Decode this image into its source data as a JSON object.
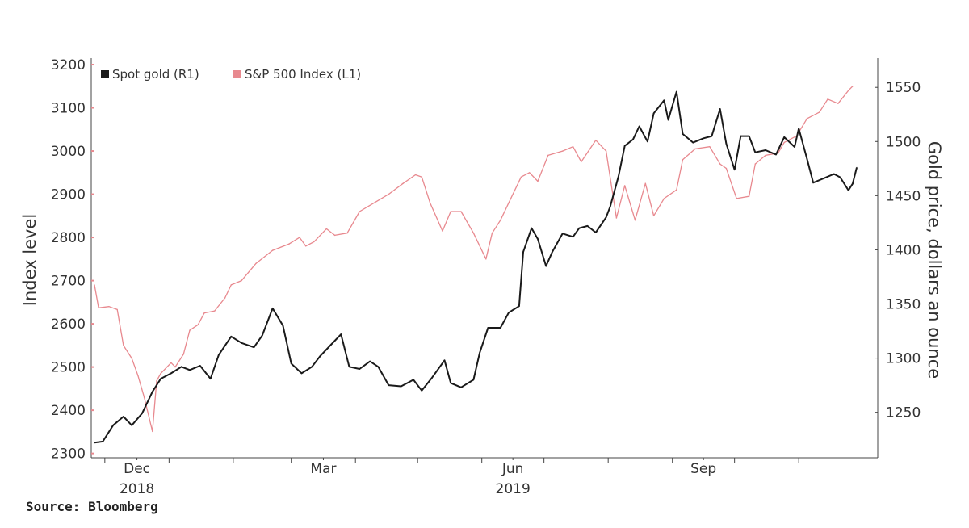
{
  "chart_data": {
    "type": "line",
    "source": "Source: Bloomberg",
    "legend": [
      {
        "label": "Spot gold (R1)",
        "color": "#1a1a1a"
      },
      {
        "label": "S&P 500 Index (L1)",
        "color": "#e8898f"
      }
    ],
    "x_ticks": [
      {
        "label": "Dec",
        "year_label": "2018",
        "date": "2018-12"
      },
      {
        "label": "Mar",
        "year_label": "",
        "date": "2019-03"
      },
      {
        "label": "Jun",
        "year_label": "2019",
        "date": "2019-06"
      },
      {
        "label": "Sep",
        "year_label": "",
        "date": "2019-09"
      }
    ],
    "left_axis": {
      "label": "Index level",
      "ticks": [
        "3200",
        "3100",
        "3000",
        "2900",
        "2800",
        "2700",
        "2600",
        "2500",
        "2400",
        "2300"
      ],
      "ylim": [
        2290,
        3215
      ]
    },
    "right_axis": {
      "label": "Gold price, dollars an ounce",
      "ticks": [
        "1550",
        "1500",
        "1450",
        "1400",
        "1350",
        "1300",
        "1250"
      ],
      "ylim": [
        1208,
        1577
      ]
    },
    "xlim": [
      "2018-11-26",
      "2019-11-29"
    ],
    "series": [
      {
        "name": "S&P 500 Index (L1)",
        "axis": "left",
        "color": "#e8898f",
        "points": [
          [
            "2018-11-26",
            2690
          ],
          [
            "2018-11-28",
            2637
          ],
          [
            "2018-12-03",
            2640
          ],
          [
            "2018-12-07",
            2633
          ],
          [
            "2018-12-10",
            2550
          ],
          [
            "2018-12-14",
            2520
          ],
          [
            "2018-12-17",
            2480
          ],
          [
            "2018-12-20",
            2430
          ],
          [
            "2018-12-24",
            2351
          ],
          [
            "2018-12-26",
            2468
          ],
          [
            "2018-12-28",
            2485
          ],
          [
            "2019-01-02",
            2510
          ],
          [
            "2019-01-04",
            2500
          ],
          [
            "2019-01-08",
            2530
          ],
          [
            "2019-01-11",
            2585
          ],
          [
            "2019-01-15",
            2598
          ],
          [
            "2019-01-18",
            2625
          ],
          [
            "2019-01-23",
            2630
          ],
          [
            "2019-01-28",
            2660
          ],
          [
            "2019-01-31",
            2690
          ],
          [
            "2019-02-05",
            2700
          ],
          [
            "2019-02-12",
            2740
          ],
          [
            "2019-02-20",
            2770
          ],
          [
            "2019-02-28",
            2785
          ],
          [
            "2019-03-05",
            2800
          ],
          [
            "2019-03-08",
            2780
          ],
          [
            "2019-03-12",
            2790
          ],
          [
            "2019-03-18",
            2820
          ],
          [
            "2019-03-22",
            2805
          ],
          [
            "2019-03-28",
            2810
          ],
          [
            "2019-04-03",
            2860
          ],
          [
            "2019-04-10",
            2880
          ],
          [
            "2019-04-17",
            2900
          ],
          [
            "2019-04-24",
            2925
          ],
          [
            "2019-04-30",
            2945
          ],
          [
            "2019-05-03",
            2940
          ],
          [
            "2019-05-07",
            2880
          ],
          [
            "2019-05-13",
            2815
          ],
          [
            "2019-05-17",
            2860
          ],
          [
            "2019-05-22",
            2860
          ],
          [
            "2019-05-28",
            2810
          ],
          [
            "2019-06-03",
            2750
          ],
          [
            "2019-06-06",
            2810
          ],
          [
            "2019-06-10",
            2840
          ],
          [
            "2019-06-14",
            2880
          ],
          [
            "2019-06-20",
            2940
          ],
          [
            "2019-06-24",
            2950
          ],
          [
            "2019-06-28",
            2930
          ],
          [
            "2019-07-03",
            2990
          ],
          [
            "2019-07-10",
            3000
          ],
          [
            "2019-07-15",
            3010
          ],
          [
            "2019-07-19",
            2975
          ],
          [
            "2019-07-26",
            3025
          ],
          [
            "2019-07-31",
            3000
          ],
          [
            "2019-08-05",
            2845
          ],
          [
            "2019-08-09",
            2920
          ],
          [
            "2019-08-14",
            2840
          ],
          [
            "2019-08-19",
            2925
          ],
          [
            "2019-08-23",
            2850
          ],
          [
            "2019-08-28",
            2890
          ],
          [
            "2019-09-03",
            2910
          ],
          [
            "2019-09-06",
            2980
          ],
          [
            "2019-09-12",
            3005
          ],
          [
            "2019-09-19",
            3010
          ],
          [
            "2019-09-24",
            2970
          ],
          [
            "2019-09-27",
            2960
          ],
          [
            "2019-10-02",
            2890
          ],
          [
            "2019-10-08",
            2895
          ],
          [
            "2019-10-11",
            2970
          ],
          [
            "2019-10-16",
            2990
          ],
          [
            "2019-10-22",
            2995
          ],
          [
            "2019-10-25",
            3020
          ],
          [
            "2019-10-31",
            3035
          ],
          [
            "2019-11-05",
            3075
          ],
          [
            "2019-11-11",
            3090
          ],
          [
            "2019-11-15",
            3120
          ],
          [
            "2019-11-20",
            3110
          ],
          [
            "2019-11-25",
            3140
          ],
          [
            "2019-11-27",
            3150
          ]
        ]
      },
      {
        "name": "Spot gold (R1)",
        "axis": "right",
        "color": "#1a1a1a",
        "points": [
          [
            "2018-11-26",
            1222
          ],
          [
            "2018-11-30",
            1223
          ],
          [
            "2018-12-05",
            1238
          ],
          [
            "2018-12-10",
            1246
          ],
          [
            "2018-12-14",
            1238
          ],
          [
            "2018-12-19",
            1249
          ],
          [
            "2018-12-24",
            1269
          ],
          [
            "2018-12-28",
            1281
          ],
          [
            "2019-01-02",
            1286
          ],
          [
            "2019-01-07",
            1292
          ],
          [
            "2019-01-11",
            1289
          ],
          [
            "2019-01-16",
            1293
          ],
          [
            "2019-01-21",
            1281
          ],
          [
            "2019-01-25",
            1303
          ],
          [
            "2019-01-31",
            1320
          ],
          [
            "2019-02-05",
            1314
          ],
          [
            "2019-02-11",
            1310
          ],
          [
            "2019-02-15",
            1321
          ],
          [
            "2019-02-20",
            1346
          ],
          [
            "2019-02-25",
            1330
          ],
          [
            "2019-03-01",
            1295
          ],
          [
            "2019-03-06",
            1286
          ],
          [
            "2019-03-11",
            1292
          ],
          [
            "2019-03-15",
            1302
          ],
          [
            "2019-03-20",
            1312
          ],
          [
            "2019-03-25",
            1322
          ],
          [
            "2019-03-29",
            1292
          ],
          [
            "2019-04-03",
            1290
          ],
          [
            "2019-04-08",
            1297
          ],
          [
            "2019-04-12",
            1292
          ],
          [
            "2019-04-17",
            1275
          ],
          [
            "2019-04-23",
            1274
          ],
          [
            "2019-04-29",
            1280
          ],
          [
            "2019-05-03",
            1270
          ],
          [
            "2019-05-08",
            1282
          ],
          [
            "2019-05-14",
            1298
          ],
          [
            "2019-05-17",
            1277
          ],
          [
            "2019-05-22",
            1273
          ],
          [
            "2019-05-28",
            1280
          ],
          [
            "2019-05-31",
            1305
          ],
          [
            "2019-06-04",
            1328
          ],
          [
            "2019-06-10",
            1328
          ],
          [
            "2019-06-14",
            1342
          ],
          [
            "2019-06-19",
            1348
          ],
          [
            "2019-06-21",
            1398
          ],
          [
            "2019-06-25",
            1420
          ],
          [
            "2019-06-28",
            1410
          ],
          [
            "2019-07-02",
            1385
          ],
          [
            "2019-07-05",
            1398
          ],
          [
            "2019-07-10",
            1415
          ],
          [
            "2019-07-15",
            1412
          ],
          [
            "2019-07-18",
            1420
          ],
          [
            "2019-07-22",
            1422
          ],
          [
            "2019-07-26",
            1416
          ],
          [
            "2019-07-31",
            1430
          ],
          [
            "2019-08-02",
            1440
          ],
          [
            "2019-08-06",
            1468
          ],
          [
            "2019-08-09",
            1496
          ],
          [
            "2019-08-13",
            1502
          ],
          [
            "2019-08-16",
            1514
          ],
          [
            "2019-08-20",
            1500
          ],
          [
            "2019-08-23",
            1526
          ],
          [
            "2019-08-28",
            1538
          ],
          [
            "2019-08-30",
            1520
          ],
          [
            "2019-09-03",
            1546
          ],
          [
            "2019-09-06",
            1507
          ],
          [
            "2019-09-11",
            1499
          ],
          [
            "2019-09-16",
            1503
          ],
          [
            "2019-09-20",
            1505
          ],
          [
            "2019-09-24",
            1530
          ],
          [
            "2019-09-27",
            1498
          ],
          [
            "2019-10-01",
            1474
          ],
          [
            "2019-10-04",
            1505
          ],
          [
            "2019-10-08",
            1505
          ],
          [
            "2019-10-11",
            1490
          ],
          [
            "2019-10-16",
            1492
          ],
          [
            "2019-10-21",
            1488
          ],
          [
            "2019-10-25",
            1504
          ],
          [
            "2019-10-30",
            1495
          ],
          [
            "2019-11-01",
            1512
          ],
          [
            "2019-11-05",
            1484
          ],
          [
            "2019-11-08",
            1462
          ],
          [
            "2019-11-13",
            1466
          ],
          [
            "2019-11-18",
            1470
          ],
          [
            "2019-11-21",
            1467
          ],
          [
            "2019-11-25",
            1455
          ],
          [
            "2019-11-27",
            1461
          ],
          [
            "2019-11-29",
            1476
          ]
        ]
      }
    ]
  }
}
